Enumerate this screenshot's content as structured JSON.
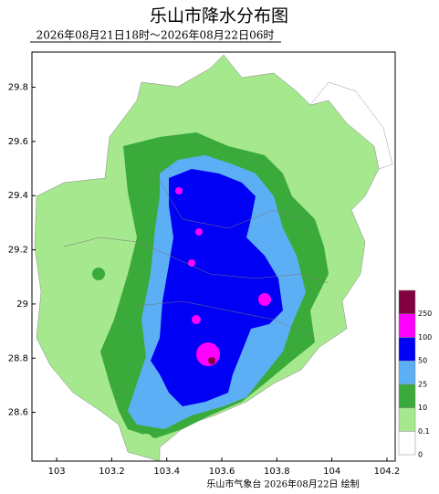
{
  "chart_data": {
    "type": "map",
    "title": "乐山市降水分布图",
    "subtitle": "2026年08月21日18时～2026年08月22日06时",
    "footer": "乐山市气象台  2026年08月22日  绘制",
    "xlim": [
      102.91,
      104.23
    ],
    "xticks": [
      103,
      103.2,
      103.4,
      103.6,
      103.8,
      104,
      104.2
    ],
    "ylim": [
      28.42,
      29.93
    ],
    "yticks": [
      28.6,
      28.8,
      29,
      29.2,
      29.4,
      29.6,
      29.8
    ],
    "legend": {
      "levels": [
        0,
        0.1,
        10,
        25,
        50,
        100,
        250
      ],
      "colors": [
        "#ffffff",
        "#a6e88e",
        "#3aab3a",
        "#5caff5",
        "#0000f5",
        "#ff00ff",
        "#800040"
      ]
    }
  }
}
